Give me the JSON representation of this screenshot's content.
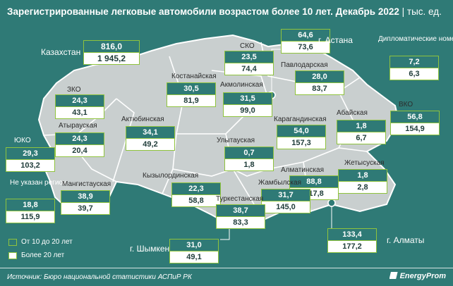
{
  "header": {
    "title": "Зарегистрированные легковые автомобили возрастом более 10 лет. Декабрь 2022",
    "unit": "| тыс. ед."
  },
  "legend": {
    "dark_label": "От 10 до 20 лет",
    "light_label": "Более 20 лет"
  },
  "footer": {
    "source": "Источник: Бюро национальной статистики АСПиР РК",
    "brand": "EnergyProm"
  },
  "colors": {
    "background": "#2f7a76",
    "map_fill": "#c9cfcf",
    "box_border": "#8fc33d",
    "box_dark": "#2f7a76",
    "box_light": "#ffffff"
  },
  "chart_data": {
    "type": "table",
    "title": "Зарегистрированные легковые автомобили возрастом более 10 лет. Декабрь 2022",
    "unit": "тыс. ед.",
    "series": [
      {
        "name": "От 10 до 20 лет"
      },
      {
        "name": "Более 20 лет"
      }
    ],
    "regions": [
      {
        "id": "kazakhstan",
        "label": "Казахстан",
        "v10_20": "816,0",
        "v20plus": "1 945,2"
      },
      {
        "id": "astana",
        "label": "г. Астана",
        "v10_20": "64,6",
        "v20plus": "73,6"
      },
      {
        "id": "sko",
        "label": "СКО",
        "v10_20": "23,5",
        "v20plus": "74,4"
      },
      {
        "id": "diplomatic",
        "label": "Дипломатические номера",
        "v10_20": "7,2",
        "v20plus": "6,3"
      },
      {
        "id": "pavlodar",
        "label": "Павлодарская",
        "v10_20": "28,0",
        "v20plus": "83,7"
      },
      {
        "id": "kostanay",
        "label": "Костанайская",
        "v10_20": "30,5",
        "v20plus": "81,9"
      },
      {
        "id": "akmola",
        "label": "Акмолинская",
        "v10_20": "31,5",
        "v20plus": "99,0"
      },
      {
        "id": "zko",
        "label": "ЗКО",
        "v10_20": "24,3",
        "v20plus": "43,1"
      },
      {
        "id": "atyrau",
        "label": "Атырауская",
        "v10_20": "24,3",
        "v20plus": "20,4"
      },
      {
        "id": "aktobe",
        "label": "Актюбинская",
        "v10_20": "34,1",
        "v20plus": "49,2"
      },
      {
        "id": "karaganda",
        "label": "Карагандинская",
        "v10_20": "54,0",
        "v20plus": "157,3"
      },
      {
        "id": "abay",
        "label": "Абайская",
        "v10_20": "1,8",
        "v20plus": "6,7"
      },
      {
        "id": "vko",
        "label": "ВКО",
        "v10_20": "56,8",
        "v20plus": "154,9"
      },
      {
        "id": "yuko",
        "label": "ЮКО",
        "v10_20": "29,3",
        "v20plus": "103,2"
      },
      {
        "id": "ulytau",
        "label": "Улытауская",
        "v10_20": "0,7",
        "v20plus": "1,8"
      },
      {
        "id": "zhetisu",
        "label": "Жетысуская",
        "v10_20": "1,8",
        "v20plus": "2,8"
      },
      {
        "id": "unknown",
        "label": "Не указан регион",
        "v10_20": "18,8",
        "v20plus": "115,9"
      },
      {
        "id": "mangystau",
        "label": "Мангистауская",
        "v10_20": "38,9",
        "v20plus": "39,7"
      },
      {
        "id": "kyzylorda",
        "label": "Кызылординская",
        "v10_20": "22,3",
        "v20plus": "58,8"
      },
      {
        "id": "almaty_reg",
        "label": "Алматинская",
        "v10_20": "88,8",
        "v20plus": "317,8"
      },
      {
        "id": "zhambyl",
        "label": "Жамбылская",
        "v10_20": "31,7",
        "v20plus": "145,0"
      },
      {
        "id": "turkestan",
        "label": "Туркестанская",
        "v10_20": "38,7",
        "v20plus": "83,3"
      },
      {
        "id": "almaty",
        "label": "г. Алматы",
        "v10_20": "133,4",
        "v20plus": "177,2"
      },
      {
        "id": "shymkent",
        "label": "г. Шымкент",
        "v10_20": "31,0",
        "v20plus": "49,1"
      }
    ]
  }
}
